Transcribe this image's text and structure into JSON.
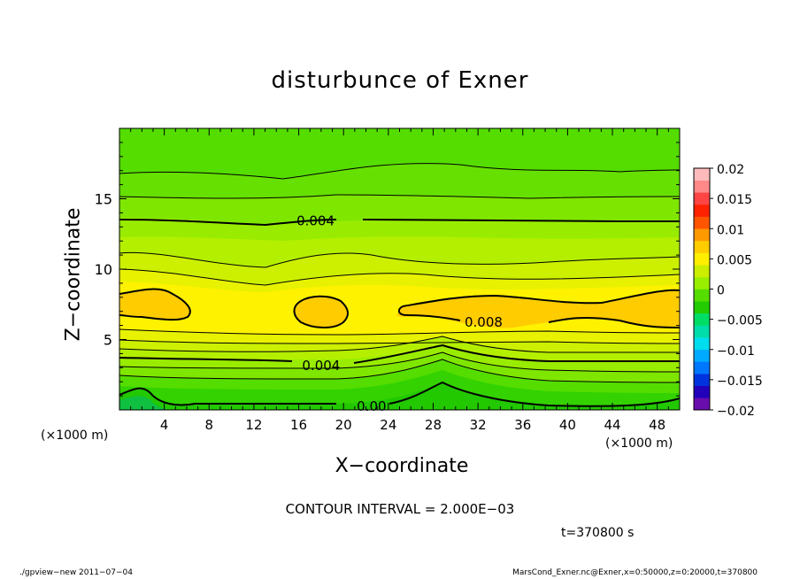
{
  "title": "disturbunce of Exner",
  "xlabel": "X−coordinate",
  "ylabel": "Z−coordinate",
  "x_unit_left": "(×1000 m)",
  "x_unit_right": "(×1000 m)",
  "contour_interval_text": "CONTOUR INTERVAL = 2.000E−03",
  "time_text": "t=370800  s",
  "footer_left": "./gpview−new   2011−07−04",
  "footer_right": "MarsCond_Exner.nc@Exner,x=0:50000,z=0:20000,t=370800",
  "chart_data": {
    "type": "heatmap",
    "title": "disturbunce of Exner",
    "xlabel": "X−coordinate",
    "ylabel": "Z−coordinate",
    "xlim": [
      0,
      50
    ],
    "ylim": [
      0,
      20
    ],
    "x_ticks": [
      4,
      8,
      12,
      16,
      20,
      24,
      28,
      32,
      36,
      40,
      44,
      48
    ],
    "y_ticks": [
      5,
      10,
      15
    ],
    "colorbar": {
      "range": [
        -0.02,
        0.02
      ],
      "tick_values": [
        0.02,
        0.015,
        0.01,
        0.005,
        0,
        -0.005,
        -0.01,
        -0.015,
        -0.02
      ],
      "tick_labels": [
        "0.02",
        "0.015",
        "0.01",
        "0.005",
        "0",
        "−0.005",
        "−0.01",
        "−0.015",
        "−0.02"
      ],
      "colors": [
        "#6a0dad",
        "#2200bb",
        "#0033dd",
        "#0077ff",
        "#00aaff",
        "#00ddee",
        "#00ddaa",
        "#00dd66",
        "#22cc00",
        "#55dd00",
        "#99ee00",
        "#ccee00",
        "#ffee00",
        "#ffcc00",
        "#ff9900",
        "#ff5500",
        "#ff2200",
        "#ff4444",
        "#ff8888",
        "#ffbbbb"
      ]
    },
    "contour_interval": 0.002,
    "contour_labels": [
      {
        "text": "0.004",
        "x": 17.5,
        "z": 13.5
      },
      {
        "text": "0.008",
        "x": 32.5,
        "z": 6.3
      },
      {
        "text": "0.004",
        "x": 18,
        "z": 3.2
      },
      {
        "text": "0.00",
        "x": 22.5,
        "z": 0.3
      }
    ]
  }
}
